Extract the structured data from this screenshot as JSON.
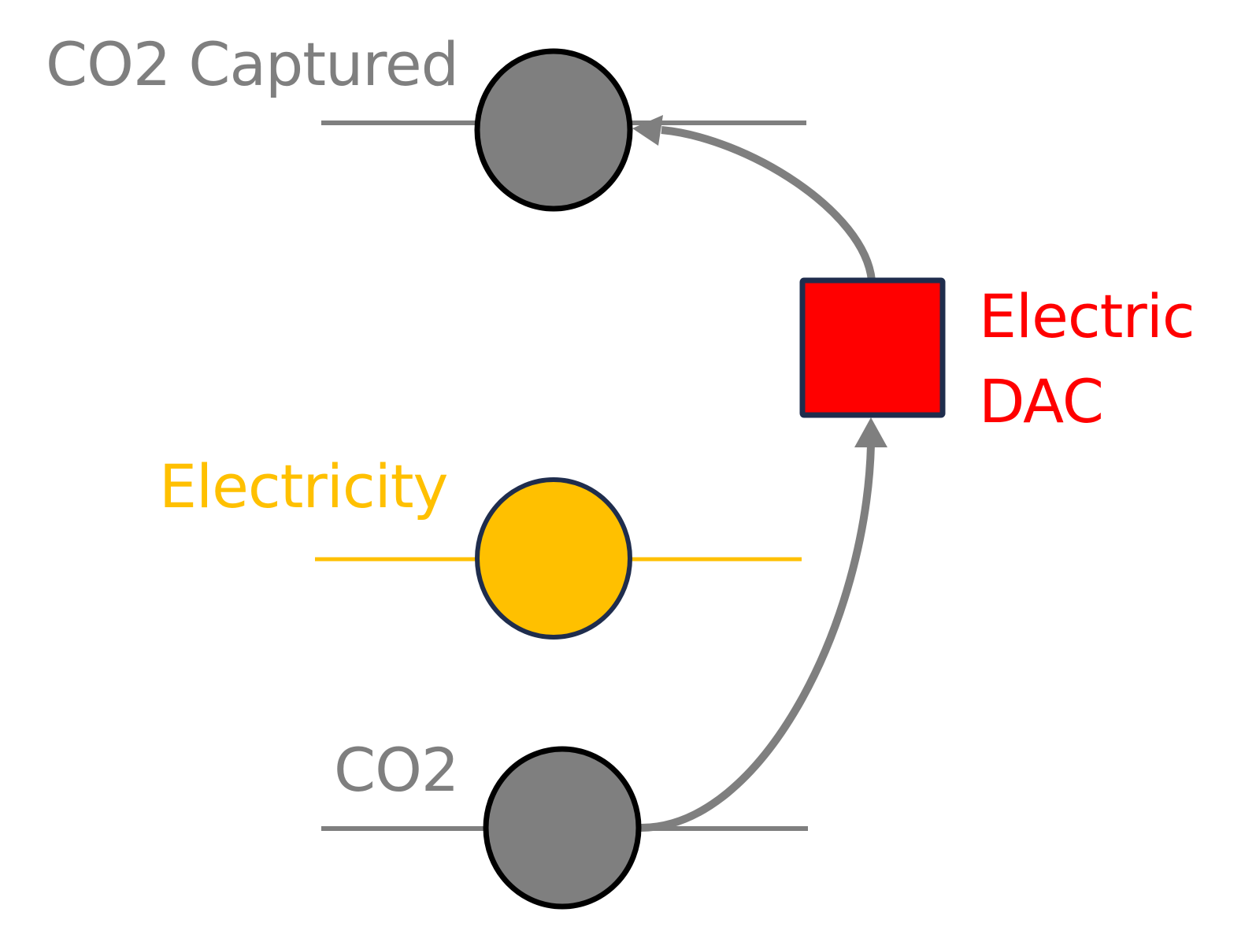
{
  "nodes": {
    "co2_captured": {
      "label": "CO2 Captured",
      "color": "#7f7f7f",
      "stroke": "#000000"
    },
    "electricity": {
      "label": "Electricity",
      "color": "#ffc000",
      "stroke": "#1f2d4d"
    },
    "co2": {
      "label": "CO2",
      "color": "#7f7f7f",
      "stroke": "#000000"
    }
  },
  "technology": {
    "label_line1": "Electric",
    "label_line2": "DAC",
    "color": "#ff0000",
    "stroke": "#1f2d4d"
  },
  "flows": [
    {
      "from": "co2",
      "to": "technology",
      "color": "#7f7f7f"
    },
    {
      "from": "technology",
      "to": "co2_captured",
      "color": "#7f7f7f"
    }
  ]
}
